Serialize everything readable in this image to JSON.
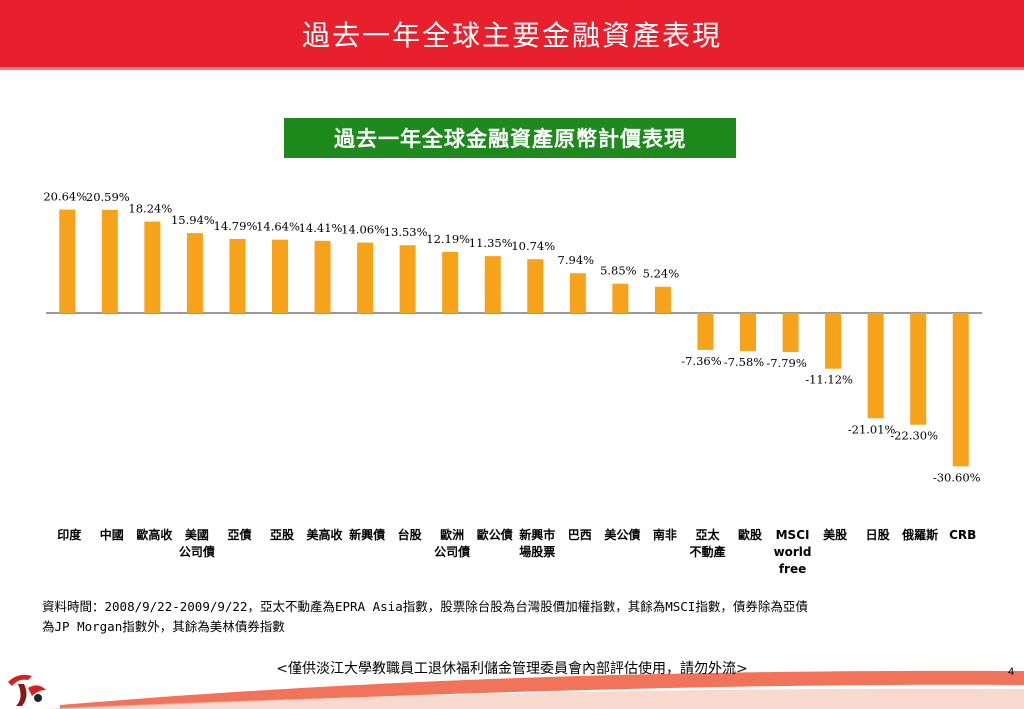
{
  "header": {
    "title": "過去一年全球主要金融資產表現"
  },
  "chart_data": {
    "type": "bar",
    "title": "過去一年全球金融資產原幣計價表現",
    "categories": [
      [
        "印度"
      ],
      [
        "中國"
      ],
      [
        "歐高收"
      ],
      [
        "美國",
        "公司債"
      ],
      [
        "亞債"
      ],
      [
        "亞股"
      ],
      [
        "美高收"
      ],
      [
        "新興債"
      ],
      [
        "台股"
      ],
      [
        "歐洲",
        "公司債"
      ],
      [
        "歐公債"
      ],
      [
        "新興市",
        "場股票"
      ],
      [
        "巴西"
      ],
      [
        "美公債"
      ],
      [
        "南非"
      ],
      [
        "亞太",
        "不動產"
      ],
      [
        "歐股"
      ],
      [
        "MSCI",
        "world",
        "free"
      ],
      [
        "美股"
      ],
      [
        "日股"
      ],
      [
        "俄羅斯"
      ],
      [
        "CRB"
      ]
    ],
    "values": [
      20.64,
      20.59,
      18.24,
      15.94,
      14.79,
      14.64,
      14.41,
      14.06,
      13.53,
      12.19,
      11.35,
      10.74,
      7.94,
      5.85,
      5.24,
      -7.36,
      -7.58,
      -7.79,
      -11.12,
      -21.01,
      -22.3,
      -30.6
    ],
    "value_labels": [
      "20.64%",
      "20.59%",
      "18.24%",
      "15.94%",
      "14.79%",
      "14.64%",
      "14.41%",
      "14.06%",
      "13.53%",
      "12.19%",
      "11.35%",
      "10.74%",
      "7.94%",
      "5.85%",
      "5.24%",
      "-7.36%",
      "-7.58%",
      "-7.79%",
      "-11.12%",
      "-21.01%",
      "-22.30%",
      "-30.60%"
    ],
    "ylim": [
      -31,
      21
    ],
    "bar_color": "#f7a21b",
    "grid": false,
    "legend": "none"
  },
  "note": {
    "line1": "資料時間：2008/9/22-2009/9/22，亞太不動產為EPRA Asia指數，股票除台股為台灣股價加權指數，其餘為MSCI指數，債券除為亞債",
    "line2": "為JP Morgan指數外，其餘為美林債券指數"
  },
  "footer": {
    "text": "<僅供淡江大學教職員工退休福利儲金管理委員會內部評估使用，請勿外流>",
    "page_number": "4"
  },
  "colors": {
    "header": "#e8202e",
    "title_box": "#1e8a1e",
    "bar": "#f7a21b"
  }
}
